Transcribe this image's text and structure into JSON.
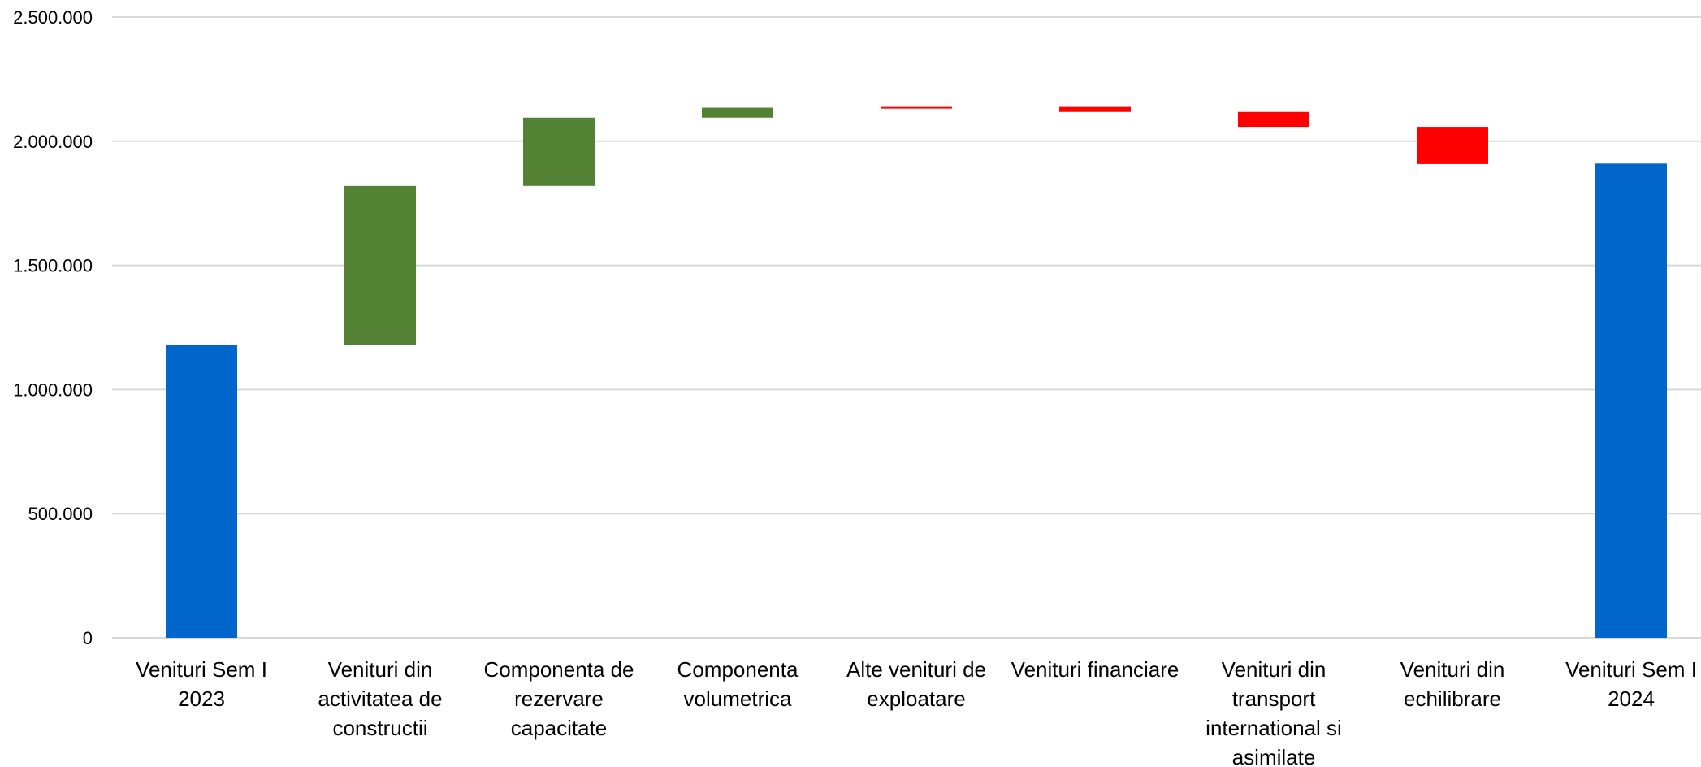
{
  "chart_data": {
    "type": "bar",
    "subtype": "waterfall",
    "title": "",
    "xlabel": "",
    "ylabel": "",
    "ylim": [
      0,
      2500000
    ],
    "yticks": [
      "0",
      "500.000",
      "1.000.000",
      "1.500.000",
      "2.000.000",
      "2.500.000"
    ],
    "grid": true,
    "colors": {
      "total": "#0066cc",
      "increase": "#548235",
      "decrease": "#ff0000"
    },
    "categories": [
      [
        "Venituri Sem I",
        "2023"
      ],
      [
        "Venituri din",
        "activitatea de",
        "constructii"
      ],
      [
        "Componenta de",
        "rezervare",
        "capacitate"
      ],
      [
        "Componenta",
        "volumetrica"
      ],
      [
        "Alte venituri de",
        "exploatare"
      ],
      [
        "Venituri financiare"
      ],
      [
        "Venituri din",
        "transport",
        "international si",
        "asimilate"
      ],
      [
        "Venituri din",
        "echilibrare"
      ],
      [
        "Venituri Sem I",
        "2024"
      ]
    ],
    "bars": [
      {
        "kind": "total",
        "start": 0,
        "end": 1180000
      },
      {
        "kind": "increase",
        "start": 1180000,
        "end": 1820000
      },
      {
        "kind": "increase",
        "start": 1820000,
        "end": 2095000
      },
      {
        "kind": "increase",
        "start": 2095000,
        "end": 2135000
      },
      {
        "kind": "decrease",
        "start": 2138000,
        "end": 2134000
      },
      {
        "kind": "decrease",
        "start": 2138000,
        "end": 2118000
      },
      {
        "kind": "decrease",
        "start": 2118000,
        "end": 2058000
      },
      {
        "kind": "decrease",
        "start": 2058000,
        "end": 1908000
      },
      {
        "kind": "total",
        "start": 0,
        "end": 1910000
      }
    ]
  }
}
